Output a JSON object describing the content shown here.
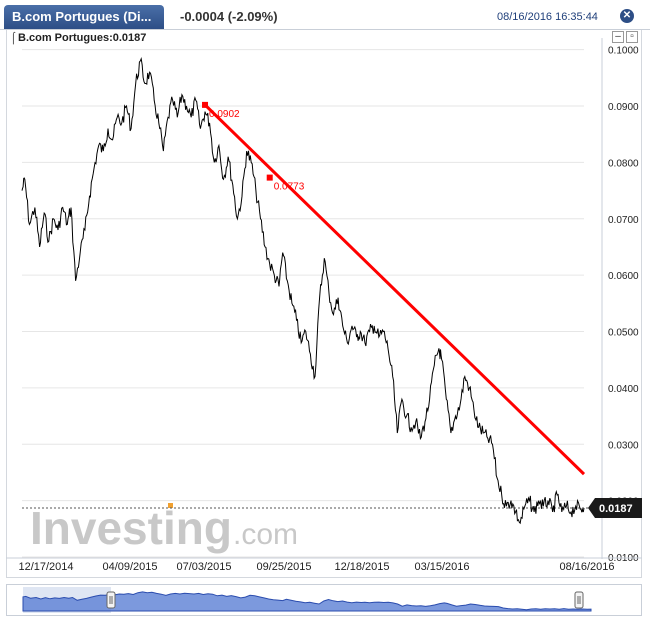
{
  "header": {
    "tab_title": "B.com Portugues (Di...",
    "change": "-0.0004 (-2.09%)",
    "datetime": "08/16/2016 16:35:44"
  },
  "legend": {
    "text": "B.com Portugues:0.0187"
  },
  "watermark": {
    "brand": "Investing",
    "suffix": ".com"
  },
  "colors": {
    "price_line": "#000000",
    "trend_line": "#ff0000",
    "price_badge": "#1a1a1a",
    "navigator_fill": "#5b7fd4"
  },
  "chart_data": {
    "type": "line",
    "title": "",
    "xlabel": "",
    "ylabel": "",
    "x_ticks": [
      "12/17/2014",
      "04/09/2015",
      "07/03/2015",
      "09/25/2015",
      "12/18/2015",
      "03/15/2016",
      "08/16/2016"
    ],
    "y_ticks": [
      "0.1000",
      "0.0900",
      "0.0800",
      "0.0700",
      "0.0600",
      "0.0500",
      "0.0400",
      "0.0300",
      "0.0200",
      "0.0100"
    ],
    "ylim": [
      0.01,
      0.101
    ],
    "xlim": [
      "2014-12-17",
      "2016-08-16"
    ],
    "last_price": 0.0187,
    "last_price_label": "0.0187",
    "grid": true,
    "series": [
      {
        "values": [
          [
            "2014-12-17",
            0.075
          ],
          [
            "2014-12-20",
            0.077
          ],
          [
            "2014-12-25",
            0.069
          ],
          [
            "2014-12-31",
            0.072
          ],
          [
            "2015-01-05",
            0.065
          ],
          [
            "2015-01-10",
            0.071
          ],
          [
            "2015-01-15",
            0.066
          ],
          [
            "2015-01-20",
            0.07
          ],
          [
            "2015-01-25",
            0.068
          ],
          [
            "2015-01-30",
            0.072
          ],
          [
            "2015-02-04",
            0.069
          ],
          [
            "2015-02-08",
            0.072
          ],
          [
            "2015-02-13",
            0.059
          ],
          [
            "2015-02-18",
            0.064
          ],
          [
            "2015-02-23",
            0.068
          ],
          [
            "2015-02-28",
            0.074
          ],
          [
            "2015-03-05",
            0.079
          ],
          [
            "2015-03-10",
            0.083
          ],
          [
            "2015-03-15",
            0.082
          ],
          [
            "2015-03-20",
            0.086
          ],
          [
            "2015-03-25",
            0.084
          ],
          [
            "2015-03-30",
            0.088
          ],
          [
            "2015-04-04",
            0.087
          ],
          [
            "2015-04-09",
            0.09
          ],
          [
            "2015-04-14",
            0.086
          ],
          [
            "2015-04-19",
            0.094
          ],
          [
            "2015-04-24",
            0.098
          ],
          [
            "2015-04-29",
            0.094
          ],
          [
            "2015-05-04",
            0.096
          ],
          [
            "2015-05-09",
            0.091
          ],
          [
            "2015-05-14",
            0.087
          ],
          [
            "2015-05-19",
            0.082
          ],
          [
            "2015-05-24",
            0.088
          ],
          [
            "2015-05-29",
            0.091
          ],
          [
            "2015-06-03",
            0.088
          ],
          [
            "2015-06-08",
            0.092
          ],
          [
            "2015-06-13",
            0.09
          ],
          [
            "2015-06-18",
            0.088
          ],
          [
            "2015-06-23",
            0.091
          ],
          [
            "2015-06-28",
            0.086
          ],
          [
            "2015-07-03",
            0.089
          ],
          [
            "2015-07-08",
            0.087
          ],
          [
            "2015-07-13",
            0.08
          ],
          [
            "2015-07-18",
            0.083
          ],
          [
            "2015-07-23",
            0.077
          ],
          [
            "2015-07-28",
            0.081
          ],
          [
            "2015-08-02",
            0.076
          ],
          [
            "2015-08-07",
            0.07
          ],
          [
            "2015-08-12",
            0.074
          ],
          [
            "2015-08-17",
            0.082
          ],
          [
            "2015-08-22",
            0.08
          ],
          [
            "2015-08-27",
            0.075
          ],
          [
            "2015-09-01",
            0.07
          ],
          [
            "2015-09-06",
            0.065
          ],
          [
            "2015-09-11",
            0.062
          ],
          [
            "2015-09-16",
            0.06
          ],
          [
            "2015-09-21",
            0.058
          ],
          [
            "2015-09-25",
            0.064
          ],
          [
            "2015-09-30",
            0.059
          ],
          [
            "2015-10-05",
            0.055
          ],
          [
            "2015-10-10",
            0.052
          ],
          [
            "2015-10-15",
            0.048
          ],
          [
            "2015-10-20",
            0.05
          ],
          [
            "2015-10-25",
            0.046
          ],
          [
            "2015-10-30",
            0.042
          ],
          [
            "2015-11-04",
            0.056
          ],
          [
            "2015-11-09",
            0.063
          ],
          [
            "2015-11-14",
            0.057
          ],
          [
            "2015-11-19",
            0.053
          ],
          [
            "2015-11-24",
            0.056
          ],
          [
            "2015-11-29",
            0.051
          ],
          [
            "2015-12-04",
            0.048
          ],
          [
            "2015-12-09",
            0.051
          ],
          [
            "2015-12-14",
            0.049
          ],
          [
            "2015-12-18",
            0.05
          ],
          [
            "2015-12-23",
            0.048
          ],
          [
            "2015-12-28",
            0.05
          ],
          [
            "2016-01-02",
            0.051
          ],
          [
            "2016-01-07",
            0.049
          ],
          [
            "2016-01-12",
            0.05
          ],
          [
            "2016-01-17",
            0.047
          ],
          [
            "2016-01-22",
            0.042
          ],
          [
            "2016-01-27",
            0.032
          ],
          [
            "2016-02-01",
            0.038
          ],
          [
            "2016-02-06",
            0.035
          ],
          [
            "2016-02-11",
            0.033
          ],
          [
            "2016-02-16",
            0.034
          ],
          [
            "2016-02-21",
            0.031
          ],
          [
            "2016-02-26",
            0.034
          ],
          [
            "2016-03-02",
            0.038
          ],
          [
            "2016-03-07",
            0.044
          ],
          [
            "2016-03-12",
            0.047
          ],
          [
            "2016-03-15",
            0.045
          ],
          [
            "2016-03-20",
            0.038
          ],
          [
            "2016-03-25",
            0.032
          ],
          [
            "2016-03-30",
            0.035
          ],
          [
            "2016-04-04",
            0.037
          ],
          [
            "2016-04-09",
            0.042
          ],
          [
            "2016-04-14",
            0.04
          ],
          [
            "2016-04-19",
            0.036
          ],
          [
            "2016-04-24",
            0.033
          ],
          [
            "2016-04-29",
            0.032
          ],
          [
            "2016-05-04",
            0.031
          ],
          [
            "2016-05-09",
            0.03
          ],
          [
            "2016-05-14",
            0.024
          ],
          [
            "2016-05-19",
            0.021
          ],
          [
            "2016-05-24",
            0.019
          ],
          [
            "2016-05-29",
            0.02
          ],
          [
            "2016-06-03",
            0.018
          ],
          [
            "2016-06-08",
            0.016
          ],
          [
            "2016-06-13",
            0.019
          ],
          [
            "2016-06-18",
            0.02
          ],
          [
            "2016-06-23",
            0.018
          ],
          [
            "2016-06-28",
            0.02
          ],
          [
            "2016-07-03",
            0.019
          ],
          [
            "2016-07-08",
            0.02
          ],
          [
            "2016-07-13",
            0.018
          ],
          [
            "2016-07-18",
            0.021
          ],
          [
            "2016-07-23",
            0.018
          ],
          [
            "2016-07-28",
            0.019
          ],
          [
            "2016-08-02",
            0.018
          ],
          [
            "2016-08-07",
            0.019
          ],
          [
            "2016-08-12",
            0.0185
          ],
          [
            "2016-08-16",
            0.0187
          ]
        ]
      }
    ],
    "annotations": [
      {
        "type": "trend_line",
        "start": [
          "2015-07-03",
          0.0902
        ],
        "end": [
          "2016-08-16",
          0.0247
        ],
        "labels": [
          {
            "x": "2015-07-03",
            "y": 0.0902,
            "text": "0.0902"
          },
          {
            "x": "2015-09-11",
            "y": 0.0773,
            "text": "0.0773"
          }
        ]
      }
    ]
  }
}
